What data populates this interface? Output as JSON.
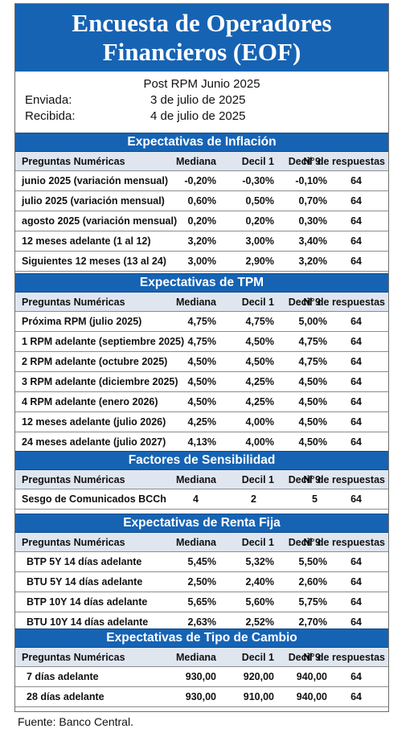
{
  "header": {
    "title_line1": "Encuesta de Operadores",
    "title_line2": "Financieros (EOF)"
  },
  "meta": {
    "subtitle": "Post RPM Junio 2025",
    "sent_label": "Enviada:",
    "sent_value": "3 de julio de 2025",
    "received_label": "Recibida:",
    "received_value": "4 de julio de 2025"
  },
  "columns": {
    "question": "Preguntas Numéricas",
    "median": "Mediana",
    "decile1": "Decil 1",
    "decile9": "Decil 9",
    "responses": "N° de respuestas"
  },
  "sections": [
    {
      "title": "Expectativas de Inflación",
      "rows": [
        {
          "q": "junio 2025 (variación mensual)",
          "median": "-0,20%",
          "d1": "-0,30%",
          "d9": "-0,10%",
          "n": "64"
        },
        {
          "q": "julio 2025 (variación mensual)",
          "median": "0,60%",
          "d1": "0,50%",
          "d9": "0,70%",
          "n": "64"
        },
        {
          "q": "agosto 2025 (variación mensual)",
          "median": "0,20%",
          "d1": "0,20%",
          "d9": "0,30%",
          "n": "64"
        },
        {
          "q": "12 meses adelante (1 al 12)",
          "median": "3,20%",
          "d1": "3,00%",
          "d9": "3,40%",
          "n": "64"
        },
        {
          "q": "Siguientes 12 meses (13 al 24)",
          "median": "3,00%",
          "d1": "2,90%",
          "d9": "3,20%",
          "n": "64"
        }
      ]
    },
    {
      "title": "Expectativas de TPM",
      "rows": [
        {
          "q": "Próxima RPM (julio 2025)",
          "median": "4,75%",
          "d1": "4,75%",
          "d9": "5,00%",
          "n": "64"
        },
        {
          "q": "1 RPM adelante (septiembre 2025)",
          "median": "4,75%",
          "d1": "4,50%",
          "d9": "4,75%",
          "n": "64"
        },
        {
          "q": "2 RPM adelante (octubre 2025)",
          "median": "4,50%",
          "d1": "4,50%",
          "d9": "4,75%",
          "n": "64"
        },
        {
          "q": "3 RPM adelante (diciembre 2025)",
          "median": "4,50%",
          "d1": "4,25%",
          "d9": "4,50%",
          "n": "64"
        },
        {
          "q": "4 RPM adelante (enero 2026)",
          "median": "4,50%",
          "d1": "4,25%",
          "d9": "4,50%",
          "n": "64"
        },
        {
          "q": "12 meses adelante (julio 2026)",
          "median": "4,25%",
          "d1": "4,00%",
          "d9": "4,50%",
          "n": "64"
        },
        {
          "q": "24 meses adelante (julio 2027)",
          "median": "4,13%",
          "d1": "4,00%",
          "d9": "4,50%",
          "n": "64"
        }
      ]
    },
    {
      "title": "Factores de Sensibilidad",
      "rows": [
        {
          "q": "Sesgo de Comunicados BCCh",
          "median": "4",
          "d1": "2",
          "d9": "5",
          "n": "64"
        }
      ]
    },
    {
      "title": "Expectativas  de Renta Fija",
      "rows": [
        {
          "q": "BTP 5Y 14 días adelante",
          "median": "5,45%",
          "d1": "5,32%",
          "d9": "5,50%",
          "n": "64"
        },
        {
          "q": "BTU 5Y 14 días adelante",
          "median": "2,50%",
          "d1": "2,40%",
          "d9": "2,60%",
          "n": "64"
        },
        {
          "q": "BTP 10Y 14 días adelante",
          "median": "5,65%",
          "d1": "5,60%",
          "d9": "5,75%",
          "n": "64"
        },
        {
          "q": "BTU 10Y 14 días adelante",
          "median": "2,63%",
          "d1": "2,52%",
          "d9": "2,70%",
          "n": "64"
        }
      ]
    },
    {
      "title": "Expectativas  de Tipo de Cambio",
      "rows": [
        {
          "q": "7 días adelante",
          "median": "930,00",
          "d1": "920,00",
          "d9": "940,00",
          "n": "64"
        },
        {
          "q": "28 días adelante",
          "median": "930,00",
          "d1": "910,00",
          "d9": "940,00",
          "n": "64"
        }
      ]
    }
  ],
  "footer": {
    "source": "Fuente: Banco Central."
  }
}
